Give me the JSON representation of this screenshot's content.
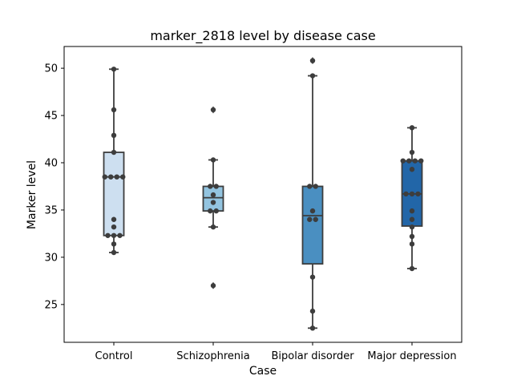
{
  "chart_data": {
    "type": "box",
    "title": "marker_2818 level by disease case",
    "xlabel": "Case",
    "ylabel": "Marker level",
    "categories": [
      "Control",
      "Schizophrenia",
      "Bipolar disorder",
      "Major depression"
    ],
    "ylim": [
      21,
      52.3
    ],
    "yticks": [
      25,
      30,
      35,
      40,
      45,
      50
    ],
    "colors": [
      "#cddff0",
      "#93c4e0",
      "#4a8fc1",
      "#2266a8"
    ],
    "boxes": [
      {
        "category": "Control",
        "whisker_low": 30.5,
        "q1": 32.3,
        "median": 38.5,
        "q3": 41.1,
        "whisker_high": 49.9,
        "outliers": []
      },
      {
        "category": "Schizophrenia",
        "whisker_low": 33.2,
        "q1": 34.9,
        "median": 36.3,
        "q3": 37.5,
        "whisker_high": 40.3,
        "outliers": [
          45.6,
          27.0
        ]
      },
      {
        "category": "Bipolar disorder",
        "whisker_low": 22.5,
        "q1": 29.3,
        "median": 34.4,
        "q3": 37.5,
        "whisker_high": 49.2,
        "outliers": [
          50.8
        ]
      },
      {
        "category": "Major depression",
        "whisker_low": 28.8,
        "q1": 33.3,
        "median": 36.7,
        "q3": 40.2,
        "whisker_high": 43.7,
        "outliers": []
      }
    ],
    "points": [
      {
        "category": "Control",
        "values": [
          49.9,
          45.6,
          42.9,
          41.1,
          38.5,
          38.5,
          38.5,
          38.5,
          34.0,
          33.2,
          32.3,
          32.3,
          32.3,
          31.4,
          30.5
        ]
      },
      {
        "category": "Schizophrenia",
        "values": [
          45.6,
          40.3,
          37.5,
          37.5,
          36.6,
          35.8,
          34.9,
          34.9,
          33.2,
          27.0
        ]
      },
      {
        "category": "Bipolar disorder",
        "values": [
          50.8,
          49.2,
          37.5,
          37.5,
          34.9,
          34.0,
          34.0,
          27.9,
          24.3,
          22.5
        ]
      },
      {
        "category": "Major depression",
        "values": [
          43.7,
          41.1,
          40.2,
          40.2,
          40.2,
          40.2,
          39.3,
          36.7,
          36.7,
          36.7,
          34.9,
          34.0,
          33.2,
          32.2,
          31.4,
          28.8
        ]
      }
    ]
  }
}
